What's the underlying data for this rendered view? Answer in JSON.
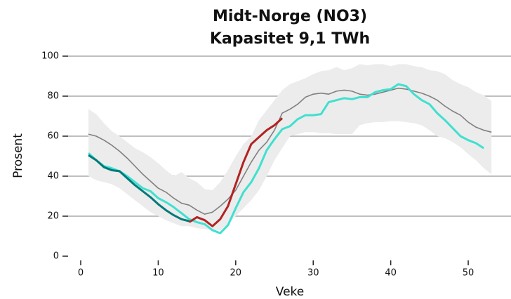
{
  "chart_data": {
    "type": "line",
    "title": "Midt-Norge (NO3)",
    "subtitle": "Kapasitet 9,1 TWh",
    "xlabel": "Veke",
    "ylabel": "Prosent",
    "x": [
      1,
      2,
      3,
      4,
      5,
      6,
      7,
      8,
      9,
      10,
      11,
      12,
      13,
      14,
      15,
      16,
      17,
      18,
      19,
      20,
      21,
      22,
      23,
      24,
      25,
      26,
      27,
      28,
      29,
      30,
      31,
      32,
      33,
      34,
      35,
      36,
      37,
      38,
      39,
      40,
      41,
      42,
      43,
      44,
      45,
      46,
      47,
      48,
      49,
      50,
      51,
      52,
      53
    ],
    "xlim": [
      -1.63,
      55.52
    ],
    "xticks": [
      0,
      10,
      20,
      30,
      40,
      50
    ],
    "ylim": [
      0,
      100
    ],
    "yticks": [
      0,
      20,
      40,
      60,
      80,
      100
    ],
    "grid": true,
    "band": {
      "color": "#ececec",
      "high": [
        73.5,
        71,
        66.5,
        62.5,
        60,
        57,
        54,
        52,
        49.5,
        46.5,
        43,
        40,
        42,
        39,
        37,
        33.5,
        33,
        37,
        43,
        50,
        56,
        60,
        68,
        73,
        78,
        83,
        86,
        87.5,
        89,
        91,
        92.5,
        93,
        94.5,
        93,
        94,
        96,
        95.5,
        96,
        96,
        95,
        96,
        96,
        95,
        94.5,
        93,
        92.5,
        91,
        88,
        86,
        84.5,
        82,
        80.5,
        77.5
      ],
      "low": [
        40,
        38,
        37,
        36,
        34,
        31,
        28,
        25,
        22,
        20,
        18,
        16.5,
        15,
        15,
        14,
        13.5,
        13,
        13,
        16,
        20,
        24,
        28,
        33,
        40,
        48,
        54,
        60,
        61,
        62,
        62,
        61.5,
        61.5,
        61,
        61,
        61,
        65.5,
        66.5,
        67,
        67,
        67.5,
        67.5,
        67,
        66.5,
        65.5,
        63,
        60,
        59,
        57,
        54.5,
        51,
        48,
        44,
        41
      ]
    },
    "series": [
      {
        "color": "#808080",
        "width": 1.6,
        "values": [
          61,
          60,
          58,
          55.5,
          52.5,
          49,
          45,
          41,
          37.5,
          34,
          32,
          29,
          26.5,
          25.5,
          23,
          21,
          22,
          25,
          28.5,
          33,
          40,
          47,
          53,
          57,
          63,
          71.5,
          73.5,
          76,
          79.5,
          81,
          81.5,
          81,
          82.5,
          83,
          82.5,
          81,
          80.5,
          81,
          82,
          83,
          84,
          83.5,
          82.5,
          81.5,
          80,
          78,
          75,
          72.5,
          70.5,
          67,
          64.5,
          63,
          62
        ]
      },
      {
        "color": "#40e0d0",
        "width": 3,
        "values": [
          51.5,
          48,
          45,
          44,
          42.5,
          40,
          37,
          34,
          32.5,
          29,
          27,
          24.5,
          21.5,
          18.5,
          17,
          16,
          13,
          11.5,
          15.5,
          24,
          32,
          37,
          44,
          53,
          58.5,
          63.5,
          65,
          68.5,
          70.5,
          70.5,
          71,
          77,
          78,
          79,
          78.5,
          79.5,
          79.5,
          82,
          83,
          83.5,
          86,
          85,
          81,
          78,
          76,
          71.5,
          68,
          64,
          60,
          58,
          56.5,
          54,
          null
        ]
      },
      {
        "color": "#007a7a",
        "width": 3,
        "values": [
          50.5,
          48,
          44.5,
          43,
          42.5,
          39,
          35.5,
          32.5,
          29.5,
          26,
          23,
          20.5,
          18.5,
          17.5,
          null,
          null,
          null,
          null,
          null,
          null,
          null,
          null,
          null,
          null,
          null,
          null,
          null,
          null,
          null,
          null,
          null,
          null,
          null,
          null,
          null,
          null,
          null,
          null,
          null,
          null,
          null,
          null,
          null,
          null,
          null,
          null,
          null,
          null,
          null,
          null,
          null,
          null,
          null
        ]
      },
      {
        "color": "#b22222",
        "width": 3,
        "values": [
          null,
          null,
          null,
          null,
          null,
          null,
          null,
          null,
          null,
          null,
          null,
          null,
          null,
          17,
          19.5,
          18,
          15,
          18.5,
          25,
          36,
          47,
          56,
          59.5,
          63,
          65.5,
          69,
          null,
          null,
          null,
          null,
          null,
          null,
          null,
          null,
          null,
          null,
          null,
          null,
          null,
          null,
          null,
          null,
          null,
          null,
          null,
          null,
          null,
          null,
          null,
          null,
          null,
          null,
          null
        ]
      }
    ]
  }
}
